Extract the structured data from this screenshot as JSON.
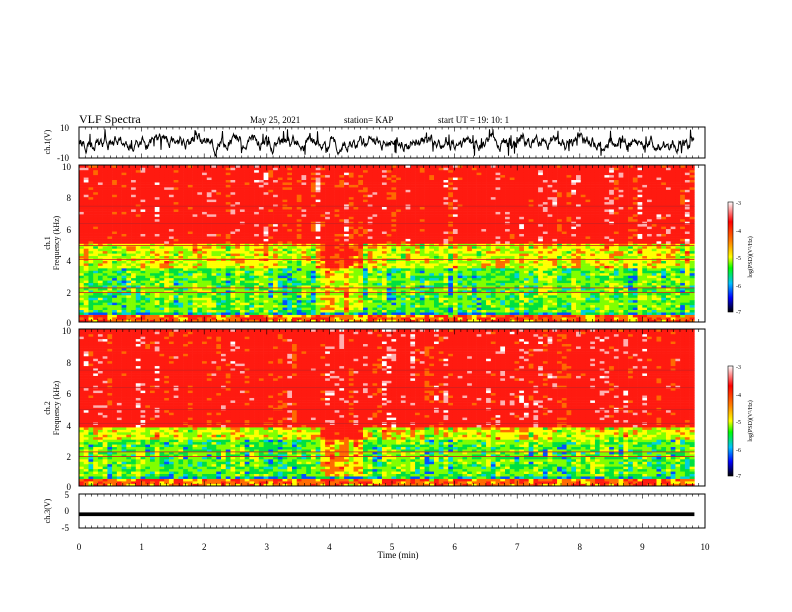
{
  "header": {
    "title": "VLF Spectra",
    "date": "May 25, 2021",
    "station": "station= KAP",
    "start": "start  UT =   19: 10: 1"
  },
  "chart_data": [
    {
      "type": "line",
      "panel": "ch1-waveform",
      "ylabel": "ch.1(V)",
      "ylim": [
        -10,
        10
      ],
      "yticks": [
        "10",
        "-10"
      ],
      "xlim": [
        0,
        10
      ],
      "end_min": 9.83,
      "trace": {
        "kind": "noise",
        "center_v": 0,
        "typical_range_v": [
          -5,
          5
        ],
        "peak_range_v": [
          -8.5,
          8.5
        ]
      }
    },
    {
      "type": "heatmap",
      "panel": "ch1-spectrogram",
      "ylabel": [
        "ch.1",
        "Frequency (kHz)"
      ],
      "ylim": [
        0,
        10
      ],
      "yticks": [
        "10",
        "8",
        "6",
        "4",
        "2",
        "0"
      ],
      "xlim": [
        0,
        10
      ],
      "end_min": 9.83,
      "band_tops_khz": {
        "blue": 0.7,
        "green": 3.5,
        "yellow": 5.0
      },
      "event": {
        "start_min": 3.83,
        "end_min": 4.5
      },
      "colorbar": {
        "label": "log(PSD)(V²/Hz)",
        "ticks": [
          "-3",
          "-4",
          "-5",
          "-6",
          "-7"
        ],
        "range": [
          -7,
          -3
        ]
      }
    },
    {
      "type": "heatmap",
      "panel": "ch2-spectrogram",
      "ylabel": [
        "ch.2",
        "Frequency (kHz)"
      ],
      "ylim": [
        0,
        10
      ],
      "yticks": [
        "10",
        "8",
        "6",
        "4",
        "2",
        "0"
      ],
      "xlim": [
        0,
        10
      ],
      "end_min": 9.83,
      "band_tops_khz": {
        "blue": 0.6,
        "green": 3.0,
        "yellow": 3.8
      },
      "event": {
        "start_min": 3.83,
        "end_min": 4.5
      },
      "colorbar": {
        "label": "log(PSD)(V²/Hz)",
        "ticks": [
          "-3",
          "-4",
          "-5",
          "-6",
          "-7"
        ],
        "range": [
          -7,
          -3
        ]
      }
    },
    {
      "type": "line",
      "panel": "ch3-waveform",
      "ylabel": "ch.3(V)",
      "ylim": [
        -5,
        5
      ],
      "yticks": [
        "5",
        "0",
        "-5"
      ],
      "xlim": [
        0,
        10
      ],
      "end_min": 9.83,
      "xlabel": "Time (min)",
      "xticks": [
        "0",
        "1",
        "2",
        "3",
        "4",
        "5",
        "6",
        "7",
        "8",
        "9",
        "10"
      ],
      "trace": {
        "kind": "band",
        "center_v": -1.0,
        "range_v": [
          -1.5,
          -0.4
        ]
      }
    }
  ]
}
